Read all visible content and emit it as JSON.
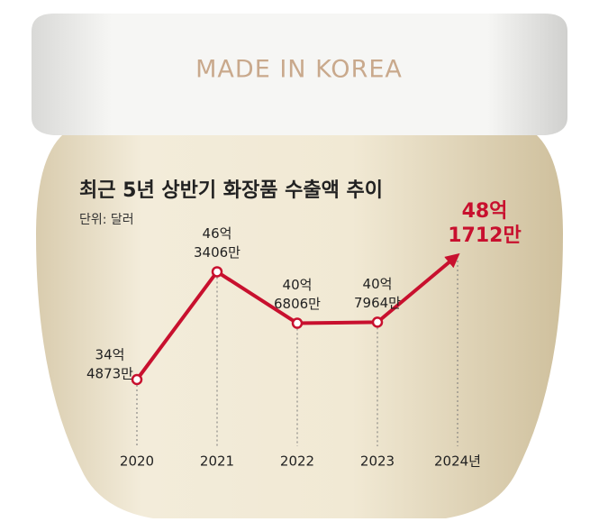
{
  "lid_text": "MADE IN KOREA",
  "chart_data": {
    "type": "line",
    "title": "최근 5년 상반기 화장품 수출액 추이",
    "subtitle": "단위: 달러",
    "categories": [
      "2020",
      "2021",
      "2022",
      "2023",
      "2024년"
    ],
    "values": [
      344873,
      463406,
      406806,
      407964,
      481712
    ],
    "value_labels": [
      [
        "34억",
        "4873만"
      ],
      [
        "46억",
        "3406만"
      ],
      [
        "40억",
        "6806만"
      ],
      [
        "40억",
        "7964만"
      ],
      [
        "48억",
        "1712만"
      ]
    ],
    "color": "#c8102e"
  }
}
